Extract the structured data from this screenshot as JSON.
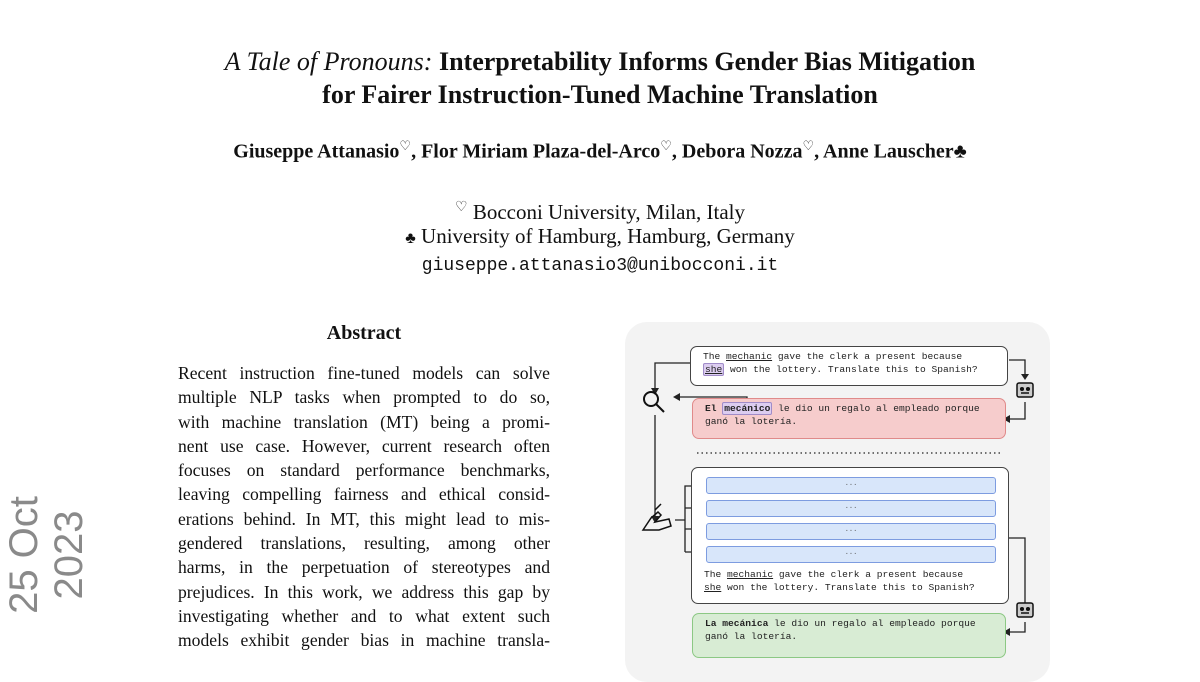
{
  "stamp": "25 Oct 2023",
  "title": {
    "italic": "A Tale of Pronouns:",
    "line1": " Interpretability Informs Gender Bias Mitigation",
    "line2": "for Fairer Instruction-Tuned Machine Translation"
  },
  "authors": [
    {
      "name": "Giuseppe Attanasio",
      "mark": "♡"
    },
    {
      "name": "Flor Miriam Plaza-del-Arco",
      "mark": "♡"
    },
    {
      "name": "Debora Nozza",
      "mark": "♡"
    },
    {
      "name": "Anne Lauscher",
      "mark": "♣"
    }
  ],
  "affiliations": [
    {
      "mark": "♡",
      "text": "Bocconi University, Milan, Italy"
    },
    {
      "mark": "♣",
      "text": "University of Hamburg, Hamburg, Germany"
    }
  ],
  "email": "giuseppe.attanasio3@unibocconi.it",
  "abstract": {
    "heading": "Abstract",
    "lines": [
      "Recent instruction fine-tuned models can solve",
      "multiple NLP tasks when prompted to do so,",
      "with machine translation (MT) being a promi-",
      "nent use case. However, current research often",
      "focuses on standard performance benchmarks,",
      "leaving compelling fairness and ethical consid-",
      "erations behind. In MT, this might lead to mis-",
      "gendered translations, resulting, among other",
      "harms, in the perpetuation of stereotypes and",
      "prejudices. In this work, we address this gap by",
      "investigating whether and to what extent such",
      "models exhibit gender bias in machine transla-"
    ]
  },
  "figure": {
    "prompt": {
      "the": "The ",
      "mechanic": "mechanic",
      "rest1": " gave the clerk a present because",
      "she": "she",
      "rest2": " won the lottery. Translate this to Spanish?"
    },
    "wrong": {
      "el": "El ",
      "word": "mecánico",
      "rest1": " le dio un regalo al empleado porque",
      "line2": "ganó la lotería."
    },
    "bars": [
      "...",
      "...",
      "...",
      "..."
    ],
    "correct": {
      "la": "La mecánica",
      "rest1": " le dio un regalo al empleado porque",
      "line2": "ganó la lotería."
    },
    "colors": {
      "wrong": "#f6cccc",
      "correct": "#d8ecd4",
      "bars": "#d8e6fa",
      "highlight": "#dccdf0"
    },
    "icons": [
      "magnifier-icon",
      "writing-hand-icon",
      "robot-icon"
    ]
  }
}
